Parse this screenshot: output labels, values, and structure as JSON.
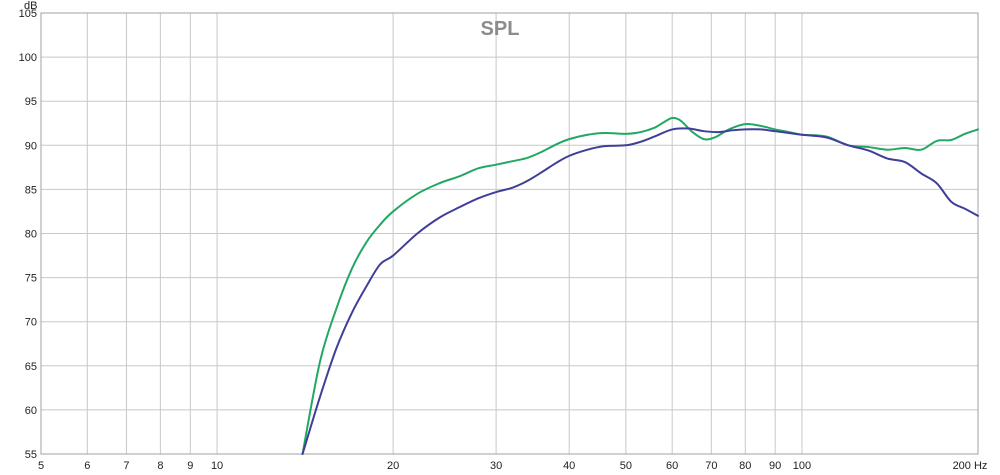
{
  "chart_data": {
    "type": "line",
    "title": "SPL",
    "ylabel": "dB",
    "xlabel": "",
    "x_unit": "Hz",
    "x_scale": "log",
    "xlim": [
      5,
      200
    ],
    "ylim": [
      55,
      105
    ],
    "grid": true,
    "x_ticks": [
      5,
      6,
      7,
      8,
      9,
      10,
      20,
      30,
      40,
      50,
      60,
      70,
      80,
      90,
      100,
      200
    ],
    "x_tick_labels": [
      "5",
      "6",
      "7",
      "8",
      "9",
      "10",
      "20",
      "30",
      "40",
      "50",
      "60",
      "70",
      "80",
      "90",
      "100",
      "200 Hz"
    ],
    "y_ticks": [
      55,
      60,
      65,
      70,
      75,
      80,
      85,
      90,
      95,
      100,
      105
    ],
    "y_tick_labels": [
      "55",
      "60",
      "65",
      "70",
      "75",
      "80",
      "85",
      "90",
      "95",
      "100",
      "105"
    ],
    "series": [
      {
        "color": "#22a862",
        "points": [
          [
            14.0,
            55.0
          ],
          [
            15.0,
            65.5
          ],
          [
            16.0,
            71.5
          ],
          [
            17.0,
            76.0
          ],
          [
            18.0,
            79.0
          ],
          [
            19.0,
            81.0
          ],
          [
            20.0,
            82.5
          ],
          [
            22.0,
            84.5
          ],
          [
            24.0,
            85.7
          ],
          [
            26.0,
            86.5
          ],
          [
            28.0,
            87.4
          ],
          [
            30.0,
            87.8
          ],
          [
            32.0,
            88.2
          ],
          [
            34.0,
            88.6
          ],
          [
            36.0,
            89.3
          ],
          [
            38.0,
            90.1
          ],
          [
            40.0,
            90.7
          ],
          [
            43.0,
            91.2
          ],
          [
            46.0,
            91.4
          ],
          [
            50.0,
            91.3
          ],
          [
            53.0,
            91.5
          ],
          [
            56.0,
            92.0
          ],
          [
            58.0,
            92.6
          ],
          [
            60.0,
            93.1
          ],
          [
            62.0,
            92.8
          ],
          [
            65.0,
            91.5
          ],
          [
            68.0,
            90.7
          ],
          [
            71.0,
            90.9
          ],
          [
            75.0,
            91.8
          ],
          [
            80.0,
            92.4
          ],
          [
            85.0,
            92.2
          ],
          [
            90.0,
            91.8
          ],
          [
            95.0,
            91.5
          ],
          [
            100.0,
            91.2
          ],
          [
            110.0,
            91.0
          ],
          [
            120.0,
            90.0
          ],
          [
            130.0,
            89.8
          ],
          [
            140.0,
            89.5
          ],
          [
            150.0,
            89.7
          ],
          [
            160.0,
            89.5
          ],
          [
            170.0,
            90.5
          ],
          [
            180.0,
            90.6
          ],
          [
            190.0,
            91.3
          ],
          [
            200.0,
            91.8
          ]
        ]
      },
      {
        "color": "#3f3f9a",
        "points": [
          [
            14.0,
            55.0
          ],
          [
            15.0,
            61.5
          ],
          [
            16.0,
            67.0
          ],
          [
            17.0,
            71.0
          ],
          [
            18.0,
            74.0
          ],
          [
            19.0,
            76.5
          ],
          [
            20.0,
            77.5
          ],
          [
            22.0,
            80.0
          ],
          [
            24.0,
            81.8
          ],
          [
            26.0,
            83.0
          ],
          [
            28.0,
            84.0
          ],
          [
            30.0,
            84.7
          ],
          [
            32.0,
            85.2
          ],
          [
            34.0,
            86.0
          ],
          [
            36.0,
            87.0
          ],
          [
            38.0,
            88.0
          ],
          [
            40.0,
            88.8
          ],
          [
            43.0,
            89.5
          ],
          [
            46.0,
            89.9
          ],
          [
            50.0,
            90.0
          ],
          [
            53.0,
            90.4
          ],
          [
            56.0,
            91.0
          ],
          [
            60.0,
            91.8
          ],
          [
            64.0,
            91.9
          ],
          [
            68.0,
            91.6
          ],
          [
            72.0,
            91.5
          ],
          [
            76.0,
            91.7
          ],
          [
            80.0,
            91.8
          ],
          [
            85.0,
            91.8
          ],
          [
            90.0,
            91.6
          ],
          [
            95.0,
            91.4
          ],
          [
            100.0,
            91.2
          ],
          [
            110.0,
            90.9
          ],
          [
            120.0,
            90.0
          ],
          [
            130.0,
            89.4
          ],
          [
            140.0,
            88.5
          ],
          [
            150.0,
            88.1
          ],
          [
            160.0,
            86.8
          ],
          [
            170.0,
            85.7
          ],
          [
            180.0,
            83.6
          ],
          [
            190.0,
            82.8
          ],
          [
            200.0,
            82.0
          ]
        ]
      }
    ]
  }
}
